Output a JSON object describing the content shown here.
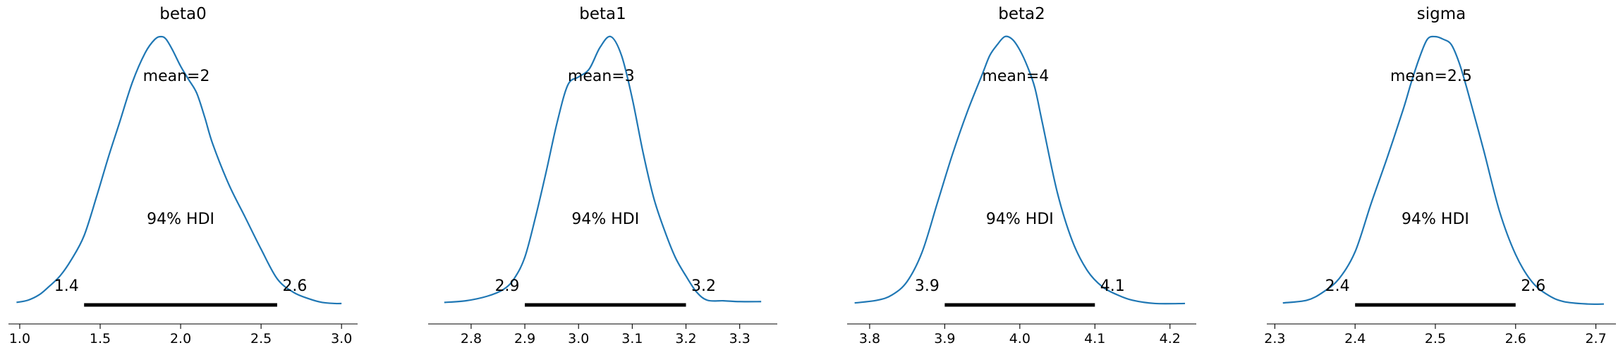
{
  "chart_data": [
    {
      "type": "line",
      "title": "beta0",
      "mean_label": "mean=2",
      "hdi_label": "94% HDI",
      "hdi": [
        1.4,
        2.6
      ],
      "hdi_labels": [
        "1.4",
        "2.6"
      ],
      "xlim": [
        0.93,
        3.1
      ],
      "ticks": [
        1.0,
        1.5,
        2.0,
        2.5,
        3.0
      ],
      "tick_labels": [
        "1.0",
        "1.5",
        "2.0",
        "2.5",
        "3.0"
      ],
      "density": {
        "x": [
          0.98,
          1.05,
          1.12,
          1.18,
          1.25,
          1.32,
          1.4,
          1.48,
          1.55,
          1.62,
          1.7,
          1.78,
          1.84,
          1.88,
          1.91,
          1.95,
          2.0,
          2.05,
          2.1,
          2.15,
          2.2,
          2.3,
          2.4,
          2.5,
          2.6,
          2.7,
          2.8,
          2.88,
          2.96,
          3.0
        ],
        "y": [
          0.012,
          0.02,
          0.04,
          0.07,
          0.11,
          0.17,
          0.26,
          0.41,
          0.55,
          0.68,
          0.83,
          0.94,
          0.99,
          1.0,
          0.99,
          0.95,
          0.89,
          0.84,
          0.79,
          0.7,
          0.6,
          0.45,
          0.33,
          0.21,
          0.1,
          0.05,
          0.025,
          0.012,
          0.008,
          0.008
        ]
      },
      "y_range": [
        0,
        1.0
      ]
    },
    {
      "type": "line",
      "title": "beta1",
      "mean_label": "mean=3",
      "hdi_label": "94% HDI",
      "hdi": [
        2.9,
        3.2
      ],
      "hdi_labels": [
        "2.9",
        "3.2"
      ],
      "xlim": [
        2.72,
        3.37
      ],
      "ticks": [
        2.8,
        2.9,
        3.0,
        3.1,
        3.2,
        3.3
      ],
      "tick_labels": [
        "2.8",
        "2.9",
        "3.0",
        "3.1",
        "3.2",
        "3.3"
      ],
      "density": {
        "x": [
          2.75,
          2.79,
          2.83,
          2.86,
          2.88,
          2.9,
          2.92,
          2.94,
          2.96,
          2.98,
          3.0,
          3.02,
          3.04,
          3.06,
          3.08,
          3.1,
          3.12,
          3.14,
          3.16,
          3.18,
          3.2,
          3.22,
          3.24,
          3.27,
          3.3,
          3.34
        ],
        "y": [
          0.012,
          0.018,
          0.035,
          0.06,
          0.1,
          0.18,
          0.33,
          0.5,
          0.68,
          0.82,
          0.85,
          0.88,
          0.96,
          1.0,
          0.93,
          0.77,
          0.57,
          0.4,
          0.28,
          0.18,
          0.11,
          0.05,
          0.02,
          0.018,
          0.015,
          0.015
        ]
      },
      "y_range": [
        0,
        1.0
      ]
    },
    {
      "type": "line",
      "title": "beta2",
      "mean_label": "mean=4",
      "hdi_label": "94% HDI",
      "hdi": [
        3.9,
        4.1
      ],
      "hdi_labels": [
        "3.9",
        "4.1"
      ],
      "xlim": [
        3.77,
        4.235
      ],
      "ticks": [
        3.8,
        3.9,
        4.0,
        4.1,
        4.2
      ],
      "tick_labels": [
        "3.8",
        "3.9",
        "4.0",
        "4.1",
        "4.2"
      ],
      "density": {
        "x": [
          3.78,
          3.81,
          3.83,
          3.85,
          3.87,
          3.89,
          3.91,
          3.93,
          3.95,
          3.96,
          3.97,
          3.98,
          3.99,
          4.0,
          4.01,
          4.02,
          4.03,
          4.05,
          4.07,
          4.09,
          4.11,
          4.13,
          4.15,
          4.18,
          4.22
        ],
        "y": [
          0.01,
          0.02,
          0.04,
          0.09,
          0.2,
          0.38,
          0.56,
          0.72,
          0.86,
          0.93,
          0.97,
          1.0,
          0.99,
          0.95,
          0.89,
          0.81,
          0.68,
          0.42,
          0.24,
          0.13,
          0.07,
          0.04,
          0.02,
          0.008,
          0.008
        ]
      },
      "y_range": [
        0,
        1.0
      ]
    },
    {
      "type": "line",
      "title": "sigma",
      "mean_label": "mean=2.5",
      "hdi_label": "94% HDI",
      "hdi": [
        2.4,
        2.6
      ],
      "hdi_labels": [
        "2.4",
        "2.6"
      ],
      "xlim": [
        2.29,
        2.725
      ],
      "ticks": [
        2.3,
        2.4,
        2.5,
        2.6,
        2.7
      ],
      "tick_labels": [
        "2.3",
        "2.4",
        "2.5",
        "2.6",
        "2.7"
      ],
      "density": {
        "x": [
          2.31,
          2.34,
          2.36,
          2.38,
          2.4,
          2.42,
          2.44,
          2.46,
          2.47,
          2.48,
          2.49,
          2.5,
          2.51,
          2.52,
          2.53,
          2.54,
          2.56,
          2.58,
          2.6,
          2.62,
          2.64,
          2.66,
          2.69,
          2.71
        ],
        "y": [
          0.01,
          0.02,
          0.05,
          0.1,
          0.2,
          0.38,
          0.55,
          0.73,
          0.83,
          0.92,
          0.99,
          1.0,
          0.99,
          0.97,
          0.9,
          0.8,
          0.58,
          0.35,
          0.19,
          0.09,
          0.04,
          0.015,
          0.006,
          0.006
        ]
      },
      "y_range": [
        0,
        1.0
      ]
    }
  ]
}
